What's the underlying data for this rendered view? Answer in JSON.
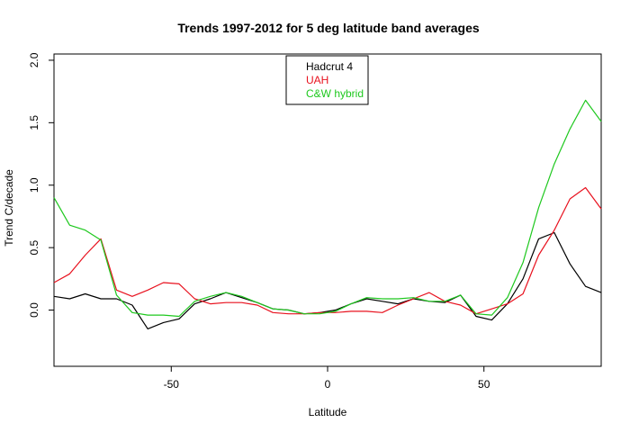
{
  "chart_data": {
    "type": "line",
    "title": "Trends 1997-2012 for 5 deg latitude band averages",
    "xlabel": "Latitude",
    "ylabel": "Trend C/decade",
    "xlim": [
      -87.5,
      87.5
    ],
    "ylim": [
      -0.45,
      2.05
    ],
    "x_ticks": [
      -50,
      0,
      50
    ],
    "y_ticks": [
      0.0,
      0.5,
      1.0,
      1.5,
      2.0
    ],
    "x_tick_labels": [
      "-50",
      "0",
      "50"
    ],
    "y_tick_labels": [
      "0.0",
      "0.5",
      "1.0",
      "1.5",
      "2.0"
    ],
    "grid": false,
    "legend_position": "top-center",
    "x": [
      -87.5,
      -82.5,
      -77.5,
      -72.5,
      -67.5,
      -62.5,
      -57.5,
      -52.5,
      -47.5,
      -42.5,
      -37.5,
      -32.5,
      -27.5,
      -22.5,
      -17.5,
      -12.5,
      -7.5,
      -2.5,
      2.5,
      7.5,
      12.5,
      17.5,
      22.5,
      27.5,
      32.5,
      37.5,
      42.5,
      47.5,
      52.5,
      57.5,
      62.5,
      67.5,
      72.5,
      77.5,
      82.5,
      87.5
    ],
    "series": [
      {
        "name": "Hadcrut 4",
        "color": "#000000",
        "values": [
          0.11,
          0.09,
          0.13,
          0.09,
          0.09,
          0.04,
          -0.15,
          -0.1,
          -0.07,
          0.05,
          0.09,
          0.14,
          0.1,
          0.06,
          0.01,
          0.0,
          -0.03,
          -0.02,
          0.0,
          0.05,
          0.09,
          0.07,
          0.05,
          0.09,
          0.07,
          0.06,
          0.12,
          -0.05,
          -0.08,
          0.05,
          0.25,
          0.57,
          0.62,
          0.37,
          0.19,
          0.14
        ]
      },
      {
        "name": "UAH",
        "color": "#e8111e",
        "values": [
          0.22,
          0.29,
          0.44,
          0.57,
          0.16,
          0.11,
          0.16,
          0.22,
          0.21,
          0.09,
          0.05,
          0.06,
          0.06,
          0.04,
          -0.02,
          -0.03,
          -0.03,
          -0.02,
          -0.02,
          -0.01,
          -0.01,
          -0.02,
          0.04,
          0.09,
          0.14,
          0.07,
          0.04,
          -0.03,
          0.01,
          0.05,
          0.13,
          0.44,
          0.64,
          0.89,
          0.98,
          0.81
        ]
      },
      {
        "name": "C&W hybrid",
        "color": "#1ec81e",
        "values": [
          0.9,
          0.68,
          0.64,
          0.56,
          0.12,
          -0.02,
          -0.04,
          -0.04,
          -0.05,
          0.07,
          0.11,
          0.14,
          0.11,
          0.06,
          0.01,
          0.0,
          -0.03,
          -0.03,
          -0.01,
          0.05,
          0.1,
          0.09,
          0.09,
          0.1,
          0.07,
          0.07,
          0.12,
          -0.03,
          -0.04,
          0.1,
          0.38,
          0.82,
          1.17,
          1.45,
          1.68,
          1.51
        ]
      }
    ]
  }
}
